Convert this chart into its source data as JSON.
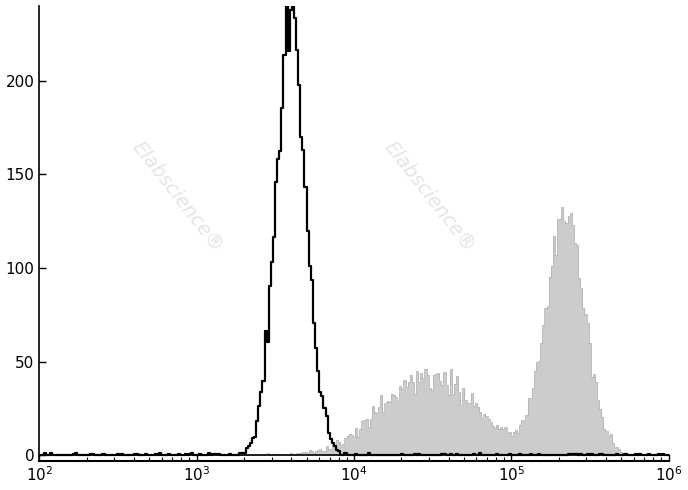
{
  "xlim": [
    100,
    1000000
  ],
  "ylim": [
    -3,
    240
  ],
  "yticks": [
    0,
    50,
    100,
    150,
    200
  ],
  "background_color": "#ffffff",
  "watermark_text": "Elabscience®",
  "isotype_color": "#000000",
  "antibody_fill_color": "#cccccc",
  "antibody_edge_color": "#aaaaaa",
  "isotype_linewidth": 1.6,
  "antibody_linewidth": 0.5,
  "iso_seed": 10,
  "ab_seed": 20,
  "n_bins": 300
}
